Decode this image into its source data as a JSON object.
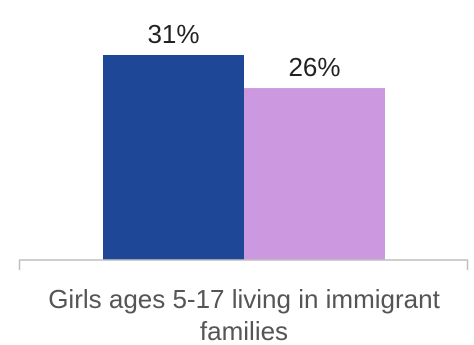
{
  "chart_data": {
    "type": "bar",
    "categories": [
      "Girls ages 5-17 living in immigrant families"
    ],
    "category_label_lines": [
      "Girls ages 5-17 living in immigrant",
      "families"
    ],
    "series": [
      {
        "values": [
          31
        ],
        "color": "#1f4797",
        "label": "31%"
      },
      {
        "values": [
          26
        ],
        "color": "#cc99e0",
        "label": "26%"
      }
    ],
    "title": "",
    "xlabel": "",
    "ylabel": "",
    "ylim": [
      0,
      31
    ],
    "grid": false,
    "legend": "none"
  }
}
